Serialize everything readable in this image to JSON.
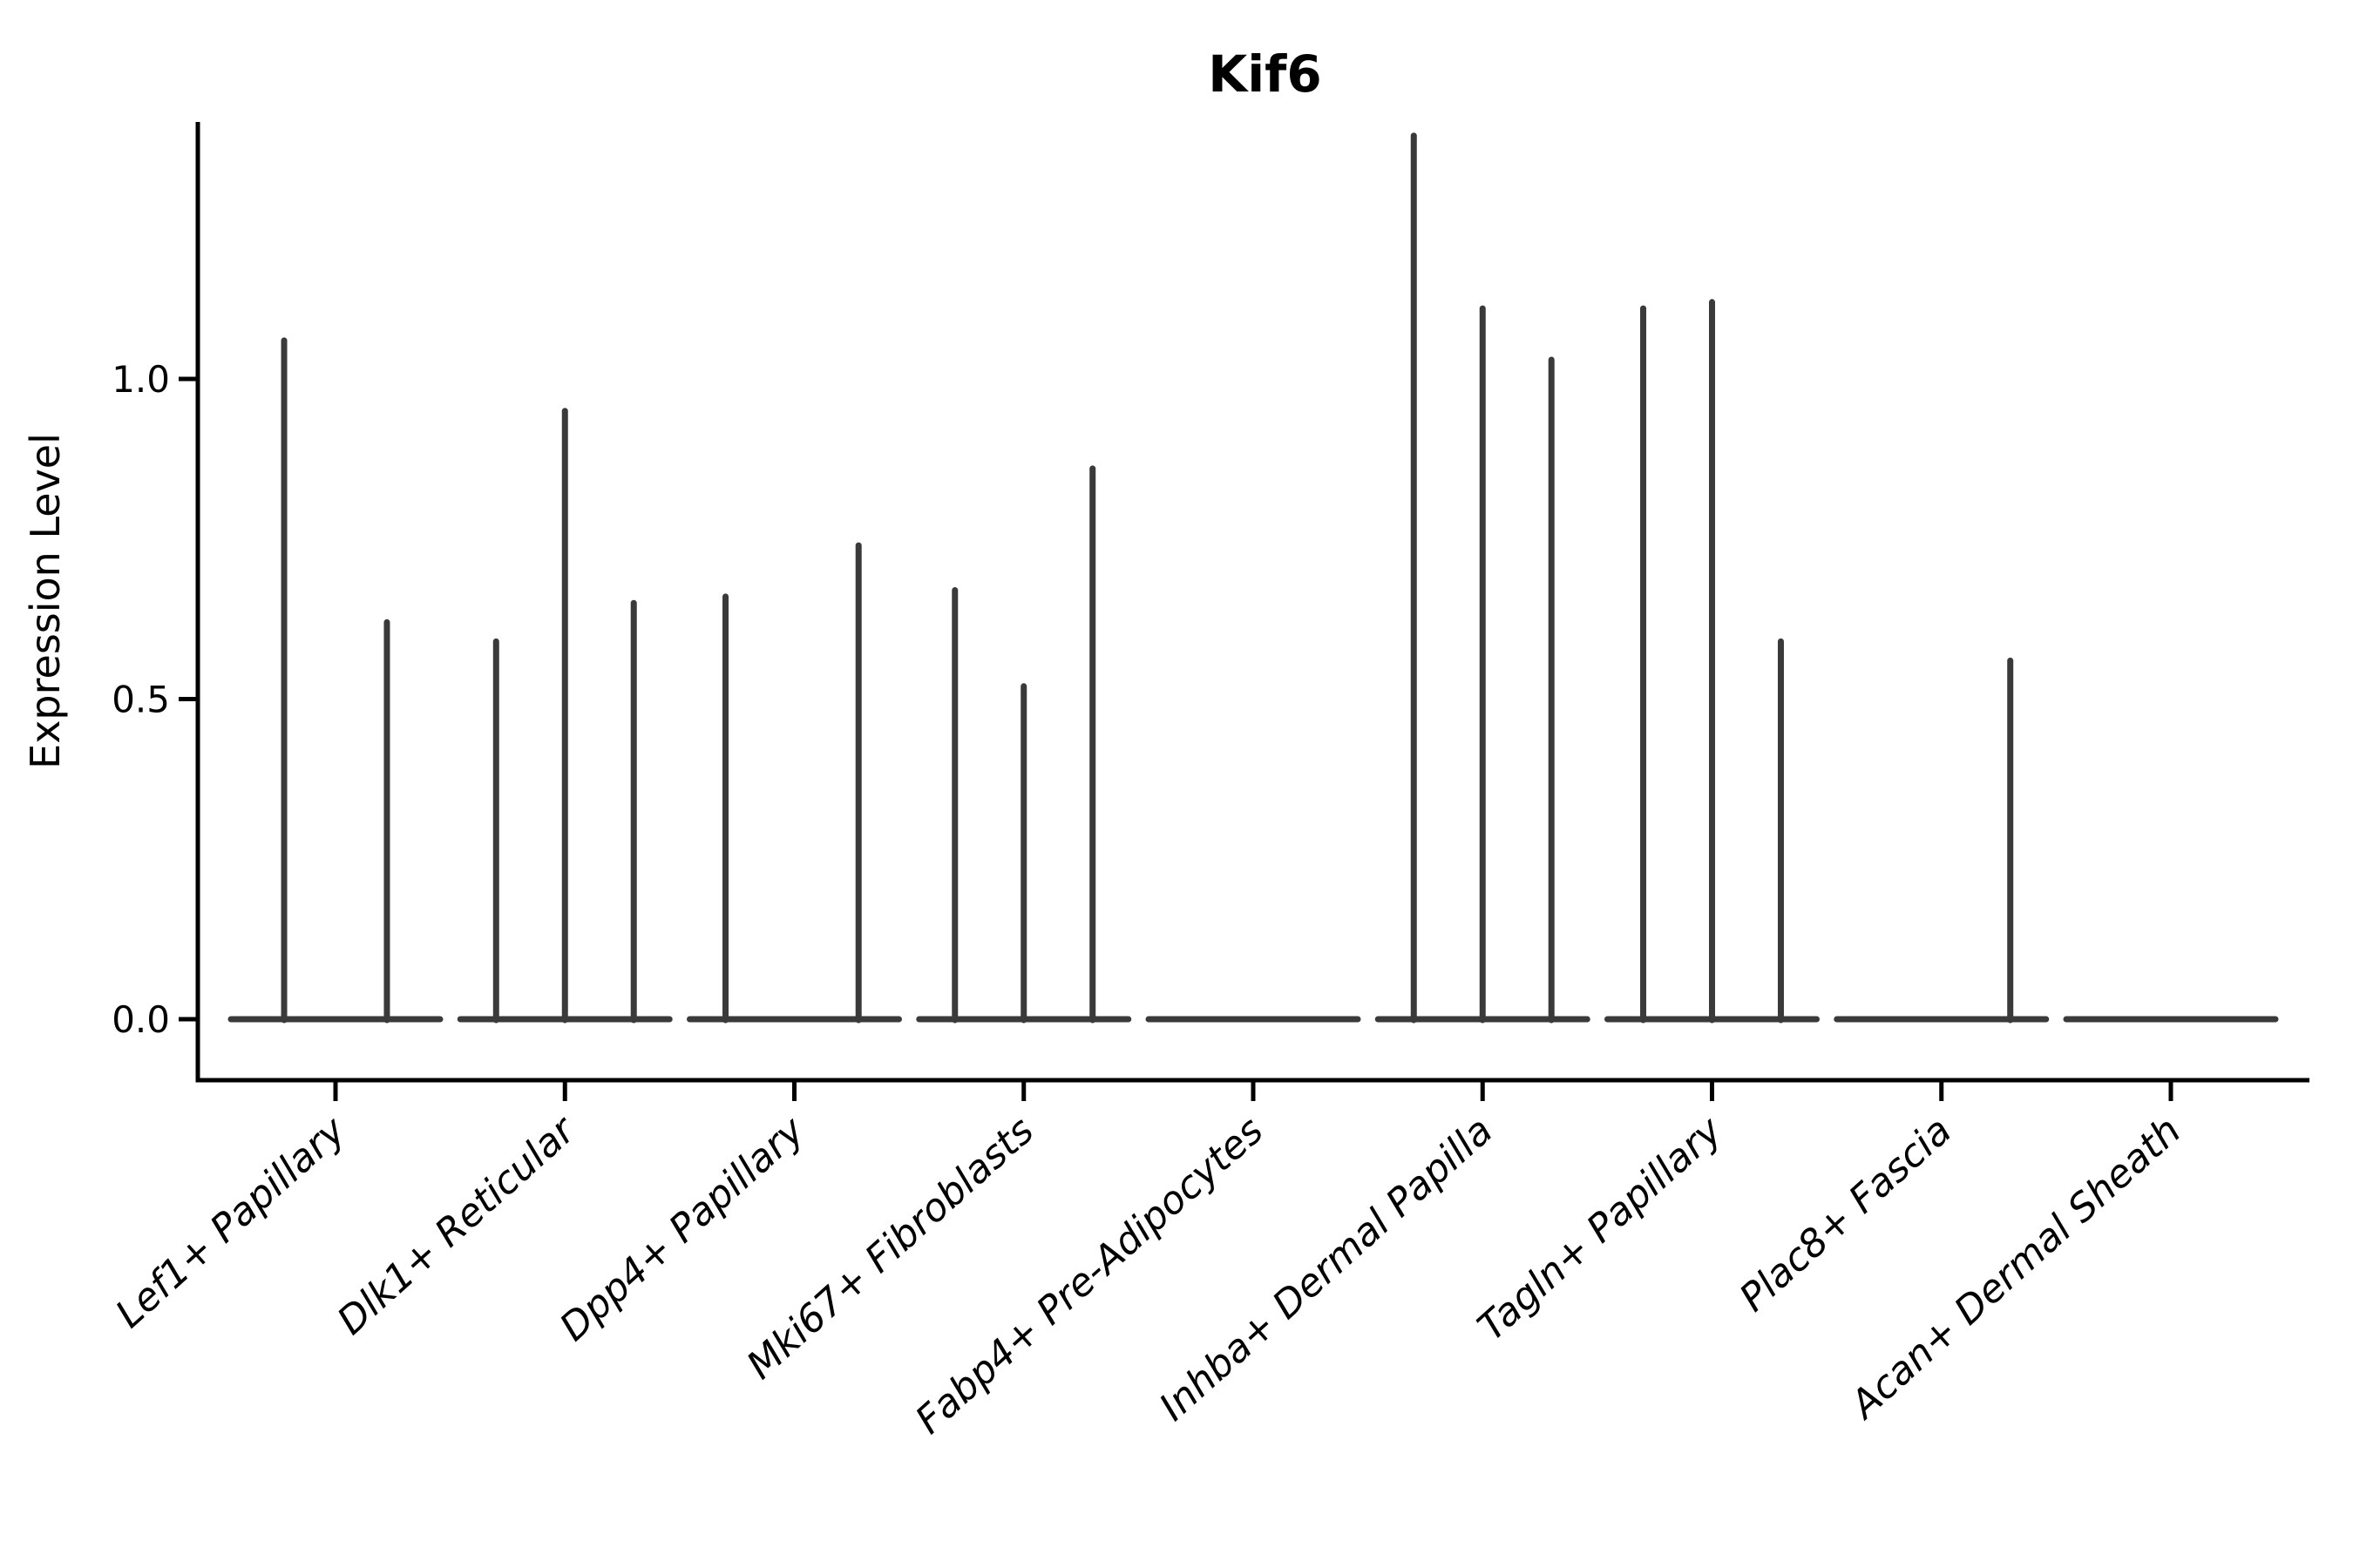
{
  "figure": {
    "background": "#ffffff",
    "axis_color": "#000000",
    "violin_color": "#3a3a3a"
  },
  "title": "Kif6",
  "y_axis": {
    "label": "Expression Level",
    "tick_labels": [
      "0.0",
      "0.5",
      "1.0"
    ]
  },
  "chart_data": {
    "type": "violin",
    "title": "Kif6",
    "xlabel": "",
    "ylabel": "Expression Level",
    "y_ticks": [
      0.0,
      0.5,
      1.0
    ],
    "ylim": [
      -0.1,
      1.4
    ],
    "grid": false,
    "legend": "none",
    "categories": [
      "Lef1+ Papillary",
      "Dlk1+ Reticular",
      "Dpp4+ Papillary",
      "Mki67+ Fibroblasts",
      "Fabp4+ Pre-Adipocytes",
      "Inhba+ Dermal Papilla",
      "Tagln+ Papillary",
      "Plac8+ Fascia",
      "Acan+ Dermal Sheath"
    ],
    "groups": [
      {
        "category": "Lef1+ Papillary",
        "spikes": [
          {
            "offset": -0.224,
            "peak": 1.06
          },
          {
            "offset": 0.224,
            "peak": 0.62
          }
        ]
      },
      {
        "category": "Dlk1+ Reticular",
        "spikes": [
          {
            "offset": -0.3,
            "peak": 0.59
          },
          {
            "offset": 0.0,
            "peak": 0.95
          },
          {
            "offset": 0.3,
            "peak": 0.65
          }
        ]
      },
      {
        "category": "Dpp4+ Papillary",
        "spikes": [
          {
            "offset": -0.3,
            "peak": 0.66
          },
          {
            "offset": 0.28,
            "peak": 0.74
          }
        ]
      },
      {
        "category": "Mki67+ Fibroblasts",
        "spikes": [
          {
            "offset": -0.3,
            "peak": 0.67
          },
          {
            "offset": 0.0,
            "peak": 0.52
          },
          {
            "offset": 0.3,
            "peak": 0.86
          }
        ]
      },
      {
        "category": "Fabp4+ Pre-Adipocytes",
        "spikes": []
      },
      {
        "category": "Inhba+ Dermal Papilla",
        "spikes": [
          {
            "offset": -0.3,
            "peak": 1.38
          },
          {
            "offset": 0.0,
            "peak": 1.11
          },
          {
            "offset": 0.3,
            "peak": 1.03
          }
        ]
      },
      {
        "category": "Tagln+ Papillary",
        "spikes": [
          {
            "offset": -0.3,
            "peak": 1.11
          },
          {
            "offset": 0.0,
            "peak": 1.12
          },
          {
            "offset": 0.3,
            "peak": 0.59
          }
        ]
      },
      {
        "category": "Plac8+ Fascia",
        "spikes": [
          {
            "offset": 0.3,
            "peak": 0.56
          }
        ]
      },
      {
        "category": "Acan+ Dermal Sheath",
        "spikes": []
      }
    ]
  }
}
